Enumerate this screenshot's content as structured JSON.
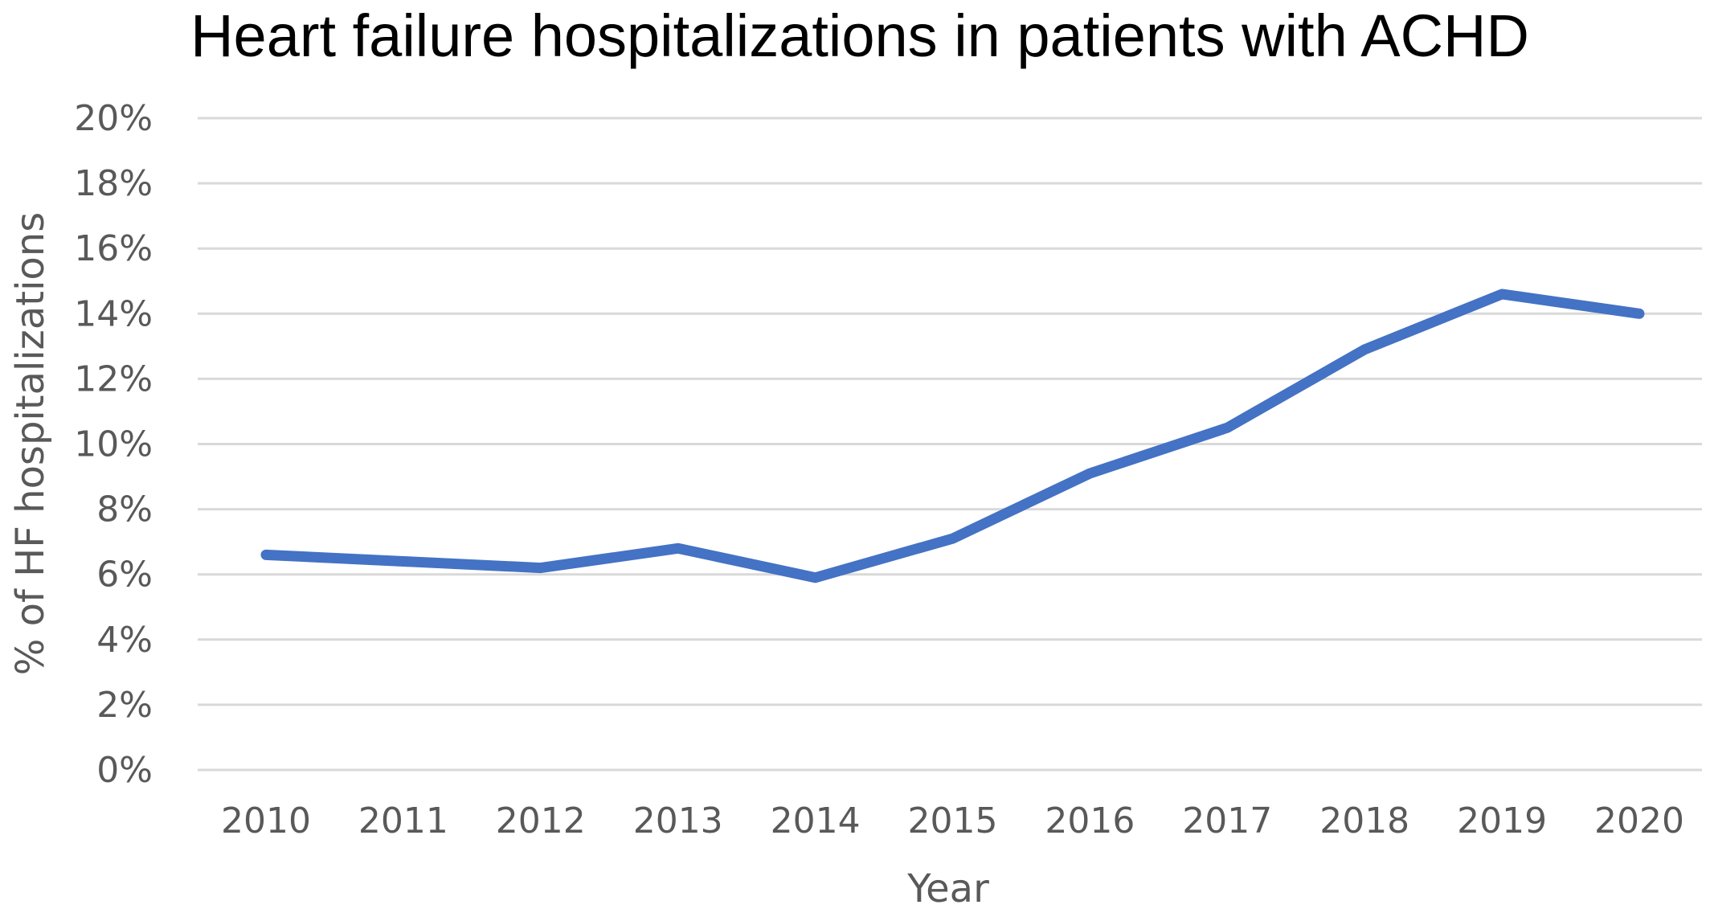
{
  "chart_data": {
    "type": "line",
    "title": "Heart failure hospitalizations in patients with ACHD",
    "xlabel": "Year",
    "ylabel": "% of HF hospitalizations",
    "categories": [
      "2010",
      "2011",
      "2012",
      "2013",
      "2014",
      "2015",
      "2016",
      "2017",
      "2018",
      "2019",
      "2020"
    ],
    "series": [
      {
        "values": [
          6.6,
          6.4,
          6.2,
          6.8,
          5.9,
          7.1,
          9.1,
          10.5,
          12.9,
          14.6,
          14.0
        ],
        "color": "#4472c4"
      }
    ],
    "ylim": [
      0,
      20
    ],
    "yticks": [
      0,
      2,
      4,
      6,
      8,
      10,
      12,
      14,
      16,
      18,
      20
    ],
    "ytick_labels": [
      "0%",
      "2%",
      "4%",
      "6%",
      "8%",
      "10%",
      "12%",
      "14%",
      "16%",
      "18%",
      "20%"
    ],
    "grid": true,
    "legend": "none",
    "gridline_color": "#d9d9d9",
    "text_color": "#595959"
  }
}
